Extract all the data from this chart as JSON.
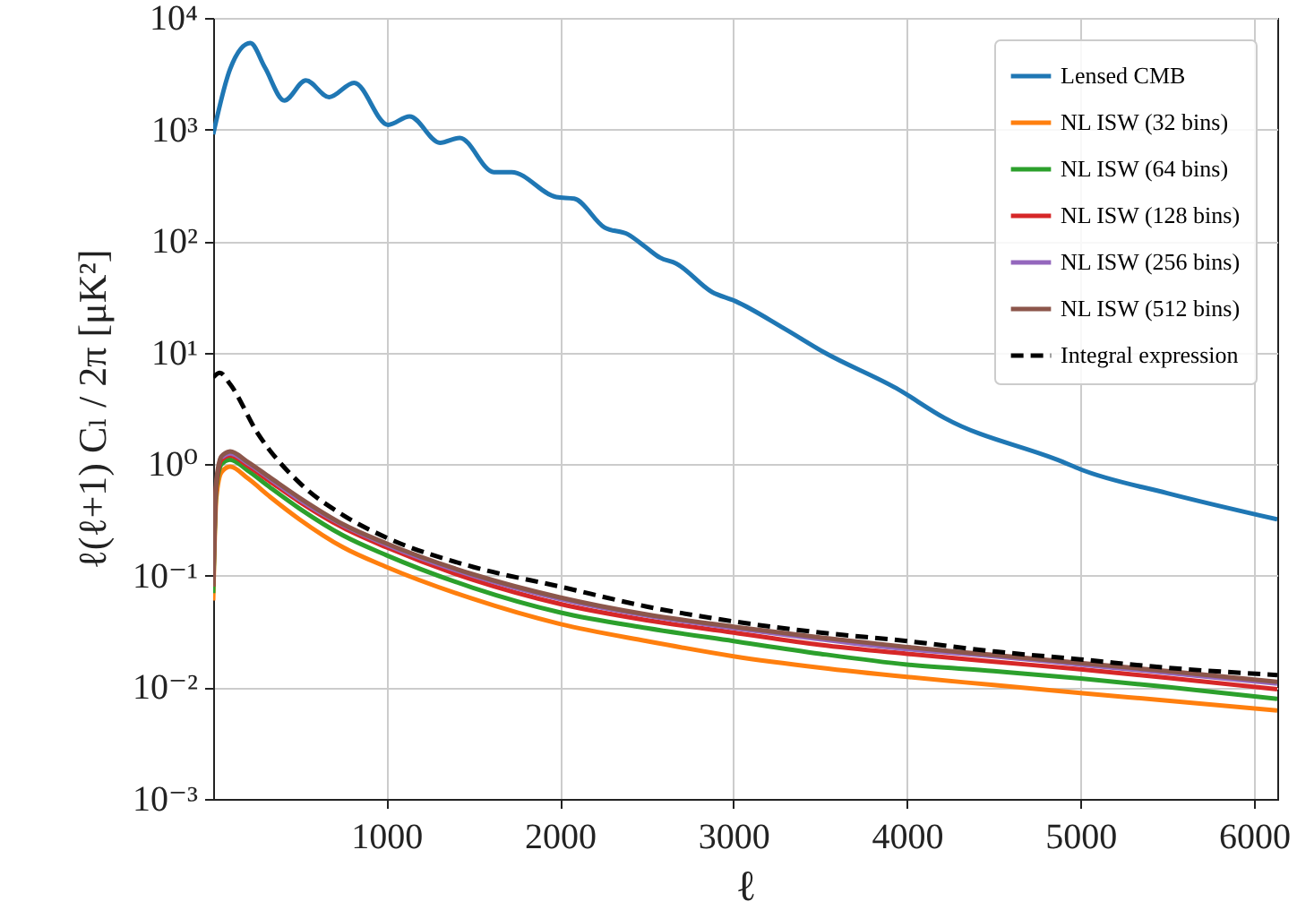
{
  "chart_data": {
    "type": "line",
    "xlabel": "ℓ",
    "ylabel": "ℓ(ℓ+1) Cₗ / 2π   [μK²]",
    "log": "y",
    "grid": true,
    "legend": "top right",
    "line_style": "solid",
    "xlim": [
      2,
      6134
    ],
    "xticks": [
      1000,
      2000,
      3000,
      4000,
      5000,
      6000
    ],
    "ylim": [
      0.001,
      10000
    ],
    "yticks": [
      {
        "value": 0.001,
        "label": "10⁻³"
      },
      {
        "value": 0.01,
        "label": "10⁻²"
      },
      {
        "value": 0.1,
        "label": "10⁻¹"
      },
      {
        "value": 1,
        "label": "10⁰"
      },
      {
        "value": 10,
        "label": "10¹"
      },
      {
        "value": 100,
        "label": "10²"
      },
      {
        "value": 1000,
        "label": "10³"
      },
      {
        "value": 10000,
        "label": "10⁴"
      }
    ],
    "x": [
      2,
      20,
      50,
      100,
      200,
      330,
      500,
      750,
      1000,
      1500,
      2000,
      2500,
      3000,
      3500,
      4000,
      4500,
      5000,
      5500,
      6134
    ],
    "series": [
      {
        "name": "Lensed CMB",
        "color": "#1f77b4",
        "x": [
          2,
          100,
          216,
          300,
          412,
          536,
          670,
          814,
          1010,
          1134,
          1309,
          1423,
          1619,
          1722,
          1979,
          2082,
          2258,
          2392,
          2495,
          2577,
          2670,
          2876,
          3010,
          3289,
          3526,
          3938,
          4216,
          4897,
          5000,
          5500,
          6134
        ],
        "values": [
          906,
          3500,
          5960,
          3600,
          1820,
          2750,
          1950,
          2620,
          1100,
          1310,
          760,
          840,
          415,
          415,
          248,
          240,
          132,
          115,
          88,
          71,
          63,
          35,
          29,
          16.6,
          10,
          4.8,
          2.6,
          1.05,
          0.9,
          0.55,
          0.32
        ]
      },
      {
        "name": "NL ISW (32 bins)",
        "color": "#ff7f0e",
        "values": [
          0.06,
          0.5,
          0.85,
          0.95,
          0.75,
          0.51,
          0.32,
          0.18,
          0.12,
          0.062,
          0.037,
          0.026,
          0.019,
          0.015,
          0.0124,
          0.0105,
          0.0089,
          0.0076,
          0.0062
        ]
      },
      {
        "name": "NL ISW (64 bins)",
        "color": "#2ca02c",
        "values": [
          0.07,
          0.6,
          1.0,
          1.1,
          0.88,
          0.62,
          0.4,
          0.23,
          0.153,
          0.078,
          0.047,
          0.034,
          0.026,
          0.02,
          0.016,
          0.014,
          0.012,
          0.0101,
          0.0079
        ]
      },
      {
        "name": "NL ISW (128 bins)",
        "color": "#d62728",
        "values": [
          0.08,
          0.65,
          1.1,
          1.2,
          0.97,
          0.7,
          0.46,
          0.27,
          0.18,
          0.092,
          0.056,
          0.04,
          0.031,
          0.024,
          0.02,
          0.017,
          0.0145,
          0.0122,
          0.0096
        ]
      },
      {
        "name": "NL ISW (256 bins)",
        "color": "#9467bd",
        "values": [
          null,
          null,
          1.15,
          1.25,
          1.02,
          0.74,
          0.48,
          0.285,
          0.19,
          0.1,
          0.062,
          0.044,
          0.034,
          0.027,
          0.022,
          0.019,
          0.016,
          0.0135,
          0.0108
        ]
      },
      {
        "name": "NL ISW (512 bins)",
        "color": "#8c564b",
        "values": [
          0.08,
          0.7,
          1.18,
          1.3,
          1.05,
          0.76,
          0.5,
          0.29,
          0.195,
          0.103,
          0.064,
          0.045,
          0.035,
          0.028,
          0.023,
          0.0195,
          0.0165,
          0.014,
          0.0112
        ]
      },
      {
        "name": "Integral expression",
        "color": "#000000",
        "line_style": "dashed",
        "x": [
          2,
          40,
          100,
          258,
          500,
          750,
          1000,
          1500,
          2000,
          2500,
          3000,
          3500,
          4000,
          4500,
          5000,
          5500,
          6134
        ],
        "values": [
          6.0,
          6.6,
          5.2,
          1.9,
          0.68,
          0.35,
          0.22,
          0.12,
          0.08,
          0.053,
          0.039,
          0.031,
          0.026,
          0.021,
          0.0178,
          0.015,
          0.0129
        ]
      }
    ]
  }
}
